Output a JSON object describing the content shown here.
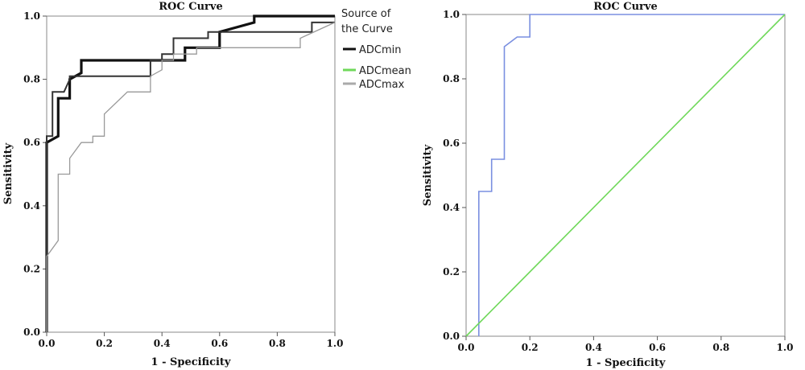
{
  "chart_data": [
    {
      "type": "line",
      "title": "ROC Curve",
      "xlabel": "1 - Specificity",
      "ylabel": "Sensitivity",
      "xlim": [
        0,
        1
      ],
      "ylim": [
        0,
        1
      ],
      "xticks": [
        "0.0",
        "0.2",
        "0.4",
        "0.6",
        "0.8",
        "1.0"
      ],
      "yticks": [
        "0.0",
        "0.2",
        "0.4",
        "0.6",
        "0.8",
        "1.0"
      ],
      "legend": {
        "title": "Source of the Curve",
        "placement": "right-outside-top",
        "entries": [
          "ADCmin",
          "ADCmean",
          "ADCmax"
        ]
      },
      "series": [
        {
          "name": "ADCmin",
          "color": "#111111",
          "stroke": "thick",
          "x": [
            0,
            0,
            0.04,
            0.04,
            0.08,
            0.08,
            0.12,
            0.12,
            0.36,
            0.36,
            0.4,
            0.4,
            0.48,
            0.48,
            0.6,
            0.6,
            0.72,
            0.72,
            1.0
          ],
          "y": [
            0,
            0.6,
            0.62,
            0.74,
            0.74,
            0.8,
            0.82,
            0.86,
            0.86,
            0.86,
            0.86,
            0.86,
            0.86,
            0.9,
            0.9,
            0.95,
            0.98,
            1.0,
            1.0
          ]
        },
        {
          "name": "ADCmean",
          "color": "#333333",
          "stroke": "medium",
          "x": [
            0,
            0,
            0.02,
            0.02,
            0.06,
            0.06,
            0.08,
            0.08,
            0.36,
            0.36,
            0.4,
            0.4,
            0.44,
            0.44,
            0.48,
            0.48,
            0.56,
            0.56,
            0.64,
            0.64,
            0.72,
            0.72,
            0.92,
            0.92,
            1.0
          ],
          "y": [
            0,
            0.62,
            0.62,
            0.76,
            0.76,
            0.76,
            0.8,
            0.81,
            0.81,
            0.86,
            0.86,
            0.88,
            0.88,
            0.93,
            0.93,
            0.93,
            0.93,
            0.95,
            0.95,
            0.95,
            0.95,
            0.95,
            0.95,
            0.98,
            0.98
          ]
        },
        {
          "name": "ADCmax",
          "color": "#999999",
          "stroke": "thin",
          "x": [
            0,
            0,
            0.04,
            0.04,
            0.08,
            0.08,
            0.12,
            0.12,
            0.16,
            0.16,
            0.2,
            0.2,
            0.28,
            0.28,
            0.36,
            0.36,
            0.4,
            0.4,
            0.44,
            0.44,
            0.52,
            0.52,
            0.64,
            0.64,
            0.88,
            0.88,
            1.0
          ],
          "y": [
            0,
            0.24,
            0.29,
            0.5,
            0.5,
            0.55,
            0.6,
            0.6,
            0.6,
            0.62,
            0.62,
            0.69,
            0.76,
            0.76,
            0.76,
            0.81,
            0.83,
            0.86,
            0.86,
            0.88,
            0.88,
            0.9,
            0.9,
            0.9,
            0.9,
            0.93,
            0.98
          ]
        }
      ]
    },
    {
      "type": "line",
      "title": "ROC Curve",
      "xlabel": "1 - Specificity",
      "ylabel": "Sensitivity",
      "xlim": [
        0,
        1
      ],
      "ylim": [
        0,
        1
      ],
      "xticks": [
        "0.0",
        "0.2",
        "0.4",
        "0.6",
        "0.8",
        "1.0"
      ],
      "yticks": [
        "0.0",
        "0.2",
        "0.4",
        "0.6",
        "0.8",
        "1.0"
      ],
      "series": [
        {
          "color": "#7a8fe0",
          "x": [
            0.04,
            0.04,
            0.08,
            0.08,
            0.12,
            0.12,
            0.16,
            0.16,
            0.2,
            0.2,
            1.0
          ],
          "y": [
            0,
            0.45,
            0.45,
            0.55,
            0.55,
            0.9,
            0.93,
            0.93,
            0.93,
            1.0,
            1.0
          ]
        },
        {
          "color": "#6fd85a",
          "x": [
            0,
            1.0
          ],
          "y": [
            0,
            1.0
          ]
        }
      ]
    }
  ]
}
